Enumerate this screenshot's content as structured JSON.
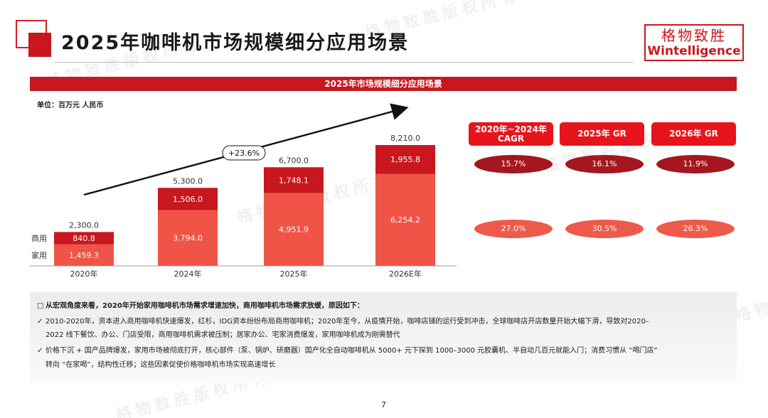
{
  "title": "2025年咖啡机市场规模细分应用场景",
  "logo": {
    "cn": "格物致胜",
    "en": "Wintelligence"
  },
  "watermark": "格物致胜版权所有",
  "banner": "2025年市场规模细分应用场景",
  "chart_data": {
    "type": "bar",
    "stacked": true,
    "unit": "单位：百万元 人民币",
    "categories": [
      "2020年",
      "2024年",
      "2025年",
      "2026E年"
    ],
    "series": [
      {
        "name": "家用",
        "values": [
          1459.3,
          3794.0,
          4951.9,
          6254.2
        ],
        "labels": [
          "1,459.3",
          "3,794.0",
          "4,951.9",
          "6,254.2"
        ],
        "color": "#ef5446"
      },
      {
        "name": "商用",
        "values": [
          840.8,
          1506.0,
          1748.1,
          1955.8
        ],
        "labels": [
          "840.8",
          "1,506.0",
          "1,748.1",
          "1,955.8"
        ],
        "color": "#c8171e"
      }
    ],
    "totals": [
      2300.0,
      5300.0,
      6700.0,
      8210.0
    ],
    "total_labels": [
      "2,300.0",
      "5,300.0",
      "6,700.0",
      "8,210.0"
    ],
    "trend_label": "+23.6%",
    "ylim": [
      0,
      8210
    ]
  },
  "growth": {
    "headers": [
      "2020年~2024年\nCAGR",
      "2025年 GR",
      "2026年 GR"
    ],
    "commercial": [
      "15.7%",
      "16.1%",
      "11.9%"
    ],
    "household": [
      "27.0%",
      "30.5%",
      "26.3%"
    ],
    "colors": {
      "commercial": "#a4171f",
      "household": "#ee5a4a",
      "header": "#e8141c"
    }
  },
  "notes": {
    "head": "从宏观角度来看，2020年开始家用咖啡机市场需求增速加快，商用咖啡机市场需求放缓，原因如下：",
    "b1_l1": "2010-2020年，资本进入商用咖啡机快速爆发，红杉，IDG资本纷纷布局商用咖啡机；2020年至今，从疫情开始，咖啡店铺的运行受到冲击，全球咖啡店开店数量开始大幅下滑，导致对2020–",
    "b1_l2": "2022 线下餐饮、办公、门店受限，商用咖啡机需求被压制；居家办公、宅家消费爆发，家用咖啡机成为刚需替代",
    "b2_l1": "价格下沉 + 国产品牌爆发，家用市场被彻底打开，核心部件（泵、锅炉、研磨器）国产化全自动咖啡机从 5000+ 元下探到 1000–3000 元胶囊机、半自动几百元就能入门；消费习惯从 “喝门店”",
    "b2_l2": "转向 “在家喝”，结构性迁移；这些因素促使价格咖啡机市场实现高速增长"
  },
  "page_number": "7"
}
